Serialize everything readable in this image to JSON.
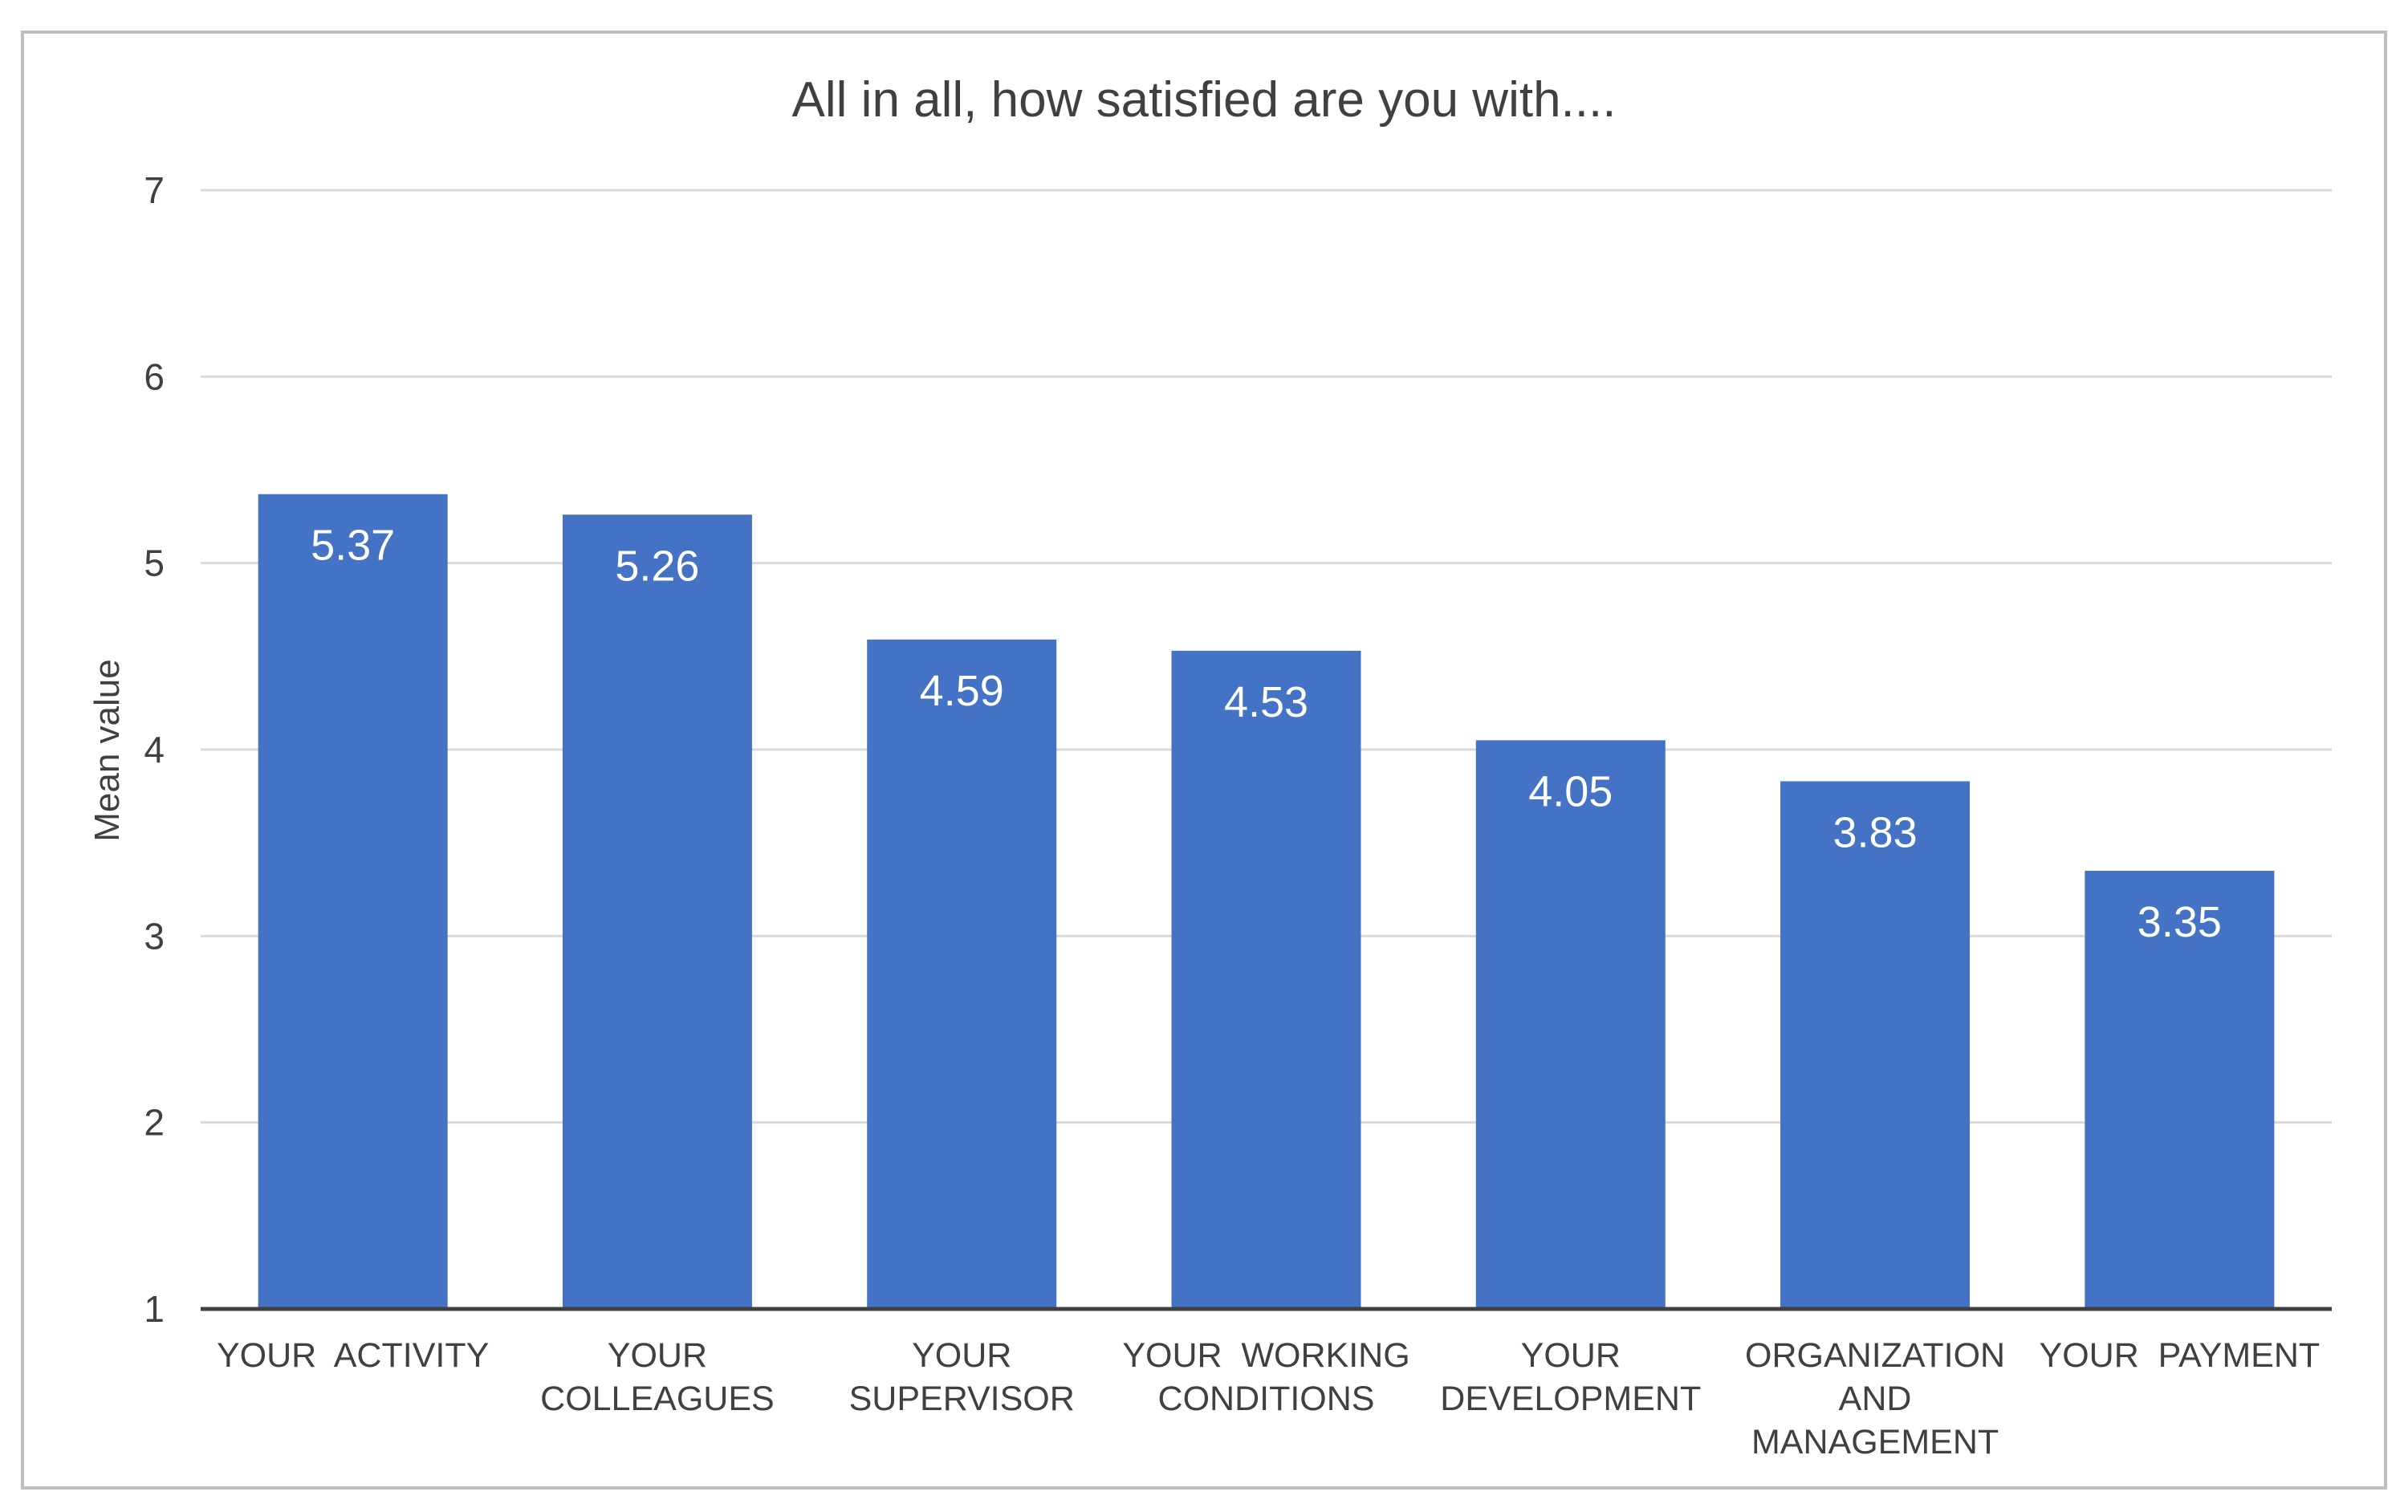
{
  "chart_data": {
    "type": "bar",
    "title": "All in all, how satisfied are you with....",
    "xlabel": "",
    "ylabel": "Mean value",
    "ylim": [
      1,
      7
    ],
    "yticks": [
      1,
      2,
      3,
      4,
      5,
      6,
      7
    ],
    "grid": true,
    "legend": "none",
    "categories": [
      [
        "YOUR  ACTIVITY"
      ],
      [
        "YOUR",
        "COLLEAGUES"
      ],
      [
        "YOUR",
        "SUPERVISOR"
      ],
      [
        "YOUR  WORKING",
        "CONDITIONS"
      ],
      [
        "YOUR",
        "DEVELOPMENT"
      ],
      [
        "ORGANIZATION",
        "AND",
        "MANAGEMENT"
      ],
      [
        "YOUR  PAYMENT"
      ]
    ],
    "values": [
      5.37,
      5.26,
      4.59,
      4.53,
      4.05,
      3.83,
      3.35
    ],
    "data_labels": [
      "5.37",
      "5.26",
      "4.59",
      "4.53",
      "4.05",
      "3.83",
      "3.35"
    ],
    "colors": {
      "bar": "#4472c4",
      "data_label": "#ffffff",
      "gridline": "#d9d9d9",
      "axis": "#404040",
      "text": "#404040",
      "frame": "#bfbfbf"
    }
  }
}
